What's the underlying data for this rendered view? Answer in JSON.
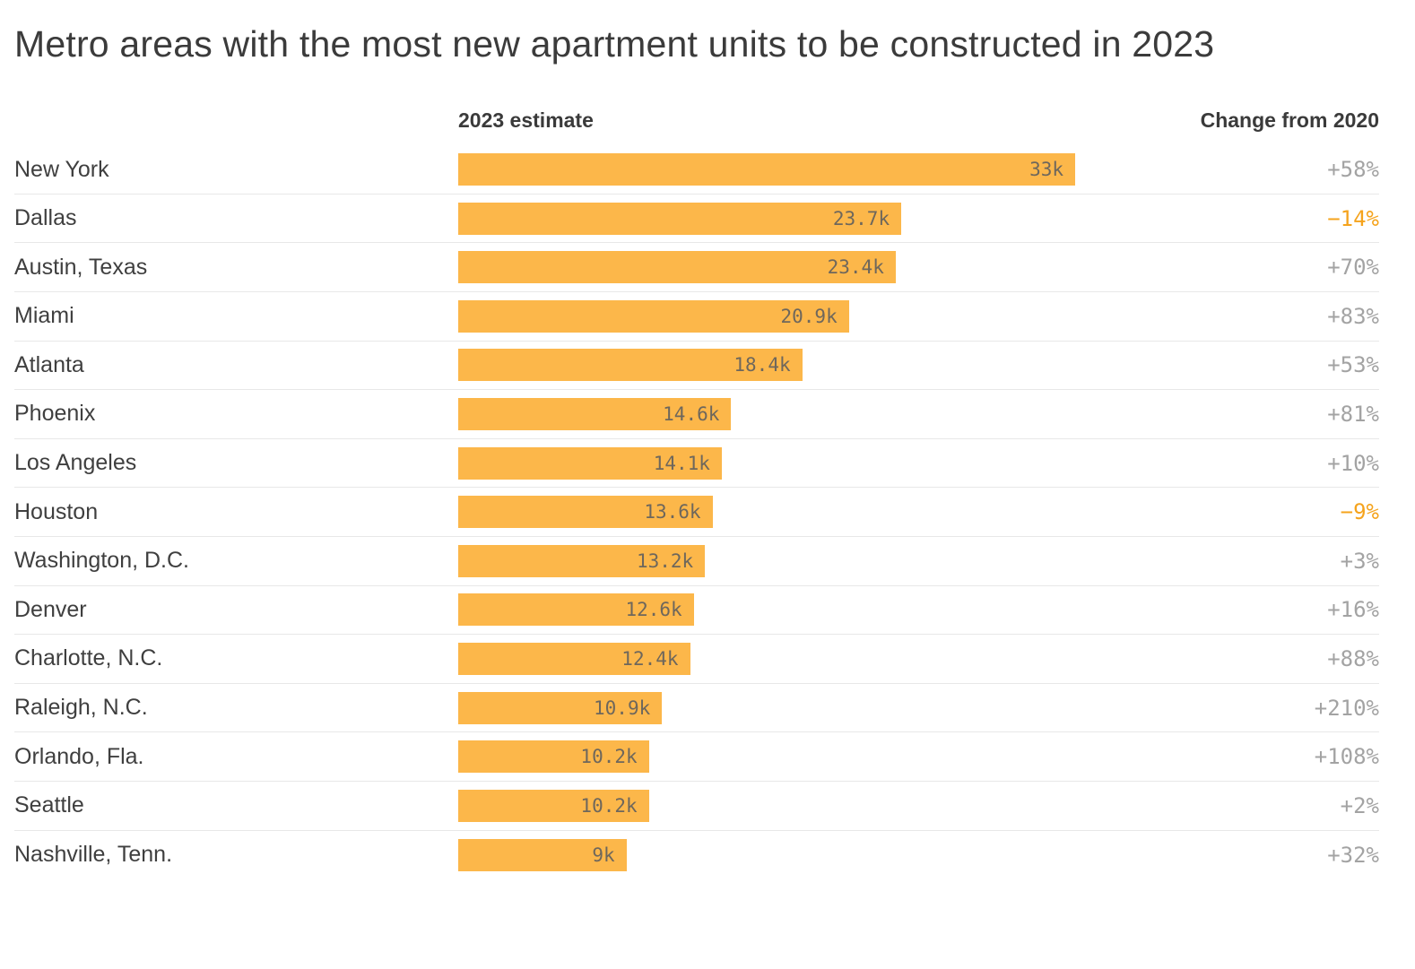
{
  "chart_data": {
    "type": "bar",
    "orientation": "horizontal",
    "title": "Metro areas with the most new apartment units to be constructed in 2023",
    "columns": {
      "estimate": "2023 estimate",
      "change": "Change from 2020"
    },
    "x_max": 33000,
    "rows": [
      {
        "category": "New York",
        "value": 33000,
        "value_label": "33k",
        "change_pct": 58,
        "change_label": "+58%",
        "negative": false
      },
      {
        "category": "Dallas",
        "value": 23700,
        "value_label": "23.7k",
        "change_pct": -14,
        "change_label": "−14%",
        "negative": true
      },
      {
        "category": "Austin, Texas",
        "value": 23400,
        "value_label": "23.4k",
        "change_pct": 70,
        "change_label": "+70%",
        "negative": false
      },
      {
        "category": "Miami",
        "value": 20900,
        "value_label": "20.9k",
        "change_pct": 83,
        "change_label": "+83%",
        "negative": false
      },
      {
        "category": "Atlanta",
        "value": 18400,
        "value_label": "18.4k",
        "change_pct": 53,
        "change_label": "+53%",
        "negative": false
      },
      {
        "category": "Phoenix",
        "value": 14600,
        "value_label": "14.6k",
        "change_pct": 81,
        "change_label": "+81%",
        "negative": false
      },
      {
        "category": "Los Angeles",
        "value": 14100,
        "value_label": "14.1k",
        "change_pct": 10,
        "change_label": "+10%",
        "negative": false
      },
      {
        "category": "Houston",
        "value": 13600,
        "value_label": "13.6k",
        "change_pct": -9,
        "change_label": "−9%",
        "negative": true
      },
      {
        "category": "Washington, D.C.",
        "value": 13200,
        "value_label": "13.2k",
        "change_pct": 3,
        "change_label": "+3%",
        "negative": false
      },
      {
        "category": "Denver",
        "value": 12600,
        "value_label": "12.6k",
        "change_pct": 16,
        "change_label": "+16%",
        "negative": false
      },
      {
        "category": "Charlotte, N.C.",
        "value": 12400,
        "value_label": "12.4k",
        "change_pct": 88,
        "change_label": "+88%",
        "negative": false
      },
      {
        "category": "Raleigh, N.C.",
        "value": 10900,
        "value_label": "10.9k",
        "change_pct": 210,
        "change_label": "+210%",
        "negative": false
      },
      {
        "category": "Orlando, Fla.",
        "value": 10200,
        "value_label": "10.2k",
        "change_pct": 108,
        "change_label": "+108%",
        "negative": false
      },
      {
        "category": "Seattle",
        "value": 10200,
        "value_label": "10.2k",
        "change_pct": 2,
        "change_label": "+2%",
        "negative": false
      },
      {
        "category": "Nashville, Tenn.",
        "value": 9000,
        "value_label": "9k",
        "change_pct": 32,
        "change_label": "+32%",
        "negative": false
      }
    ],
    "legend": "off",
    "grid": "row-separators-only"
  },
  "colors": {
    "bar": "#FCB74A",
    "negative_change": "#F5A31C",
    "positive_change": "#A3A3A3",
    "bar_value_text": "#6E675C",
    "row_label_text": "#3F3F3F",
    "title_text": "#3B3B3B",
    "separator": "#E8E8E8"
  }
}
